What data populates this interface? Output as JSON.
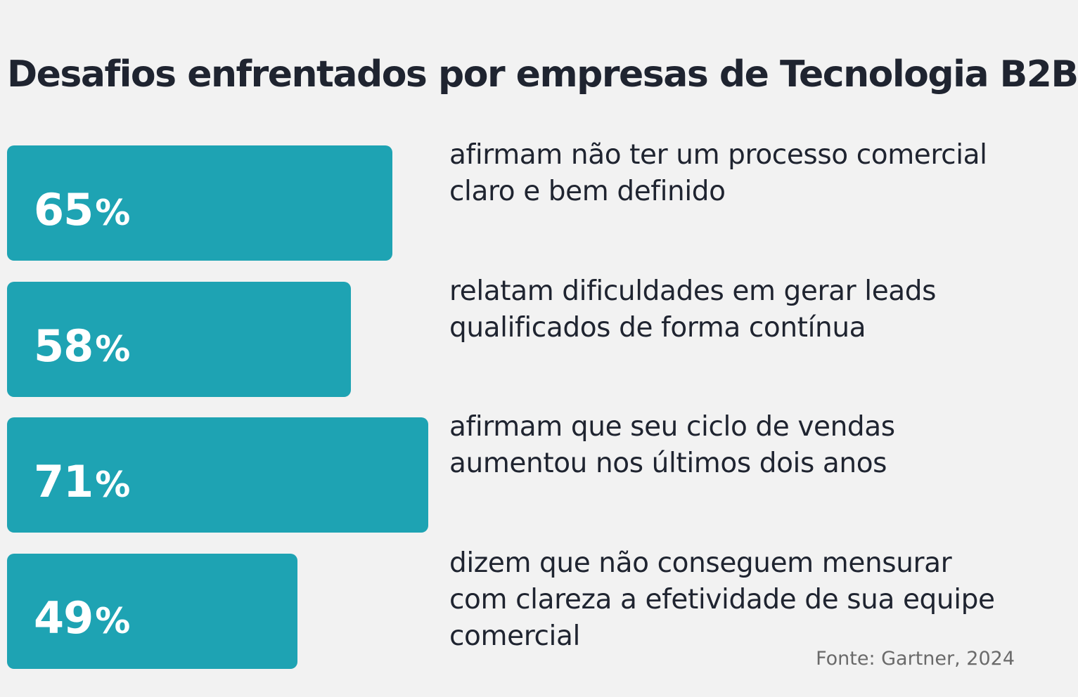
{
  "title": "Desafios enfrentados por empresas de Tecnologia B2B",
  "source": "Fonte: Gartner, 2024",
  "colors": {
    "bar": "#1ea3b3",
    "background": "#f2f2f2",
    "text": "#1f2430",
    "source_text": "#6a6a6a"
  },
  "chart_data": {
    "type": "bar",
    "orientation": "horizontal",
    "title": "Desafios enfrentados por empresas de Tecnologia B2B",
    "unit": "%",
    "items": [
      {
        "value": 65,
        "value_label": "65",
        "description": "afirmam não ter um processo comercial claro e bem definido"
      },
      {
        "value": 58,
        "value_label": "58",
        "description": "relatam dificuldades em gerar leads qualificados de forma contínua"
      },
      {
        "value": 71,
        "value_label": "71",
        "description": "afirmam que seu ciclo de vendas aumentou nos últimos dois anos"
      },
      {
        "value": 49,
        "value_label": "49",
        "description": "dizem que não conseguem mensurar com clareza a efetividade de sua equipe comercial"
      }
    ],
    "grid": false,
    "legend": "none"
  }
}
